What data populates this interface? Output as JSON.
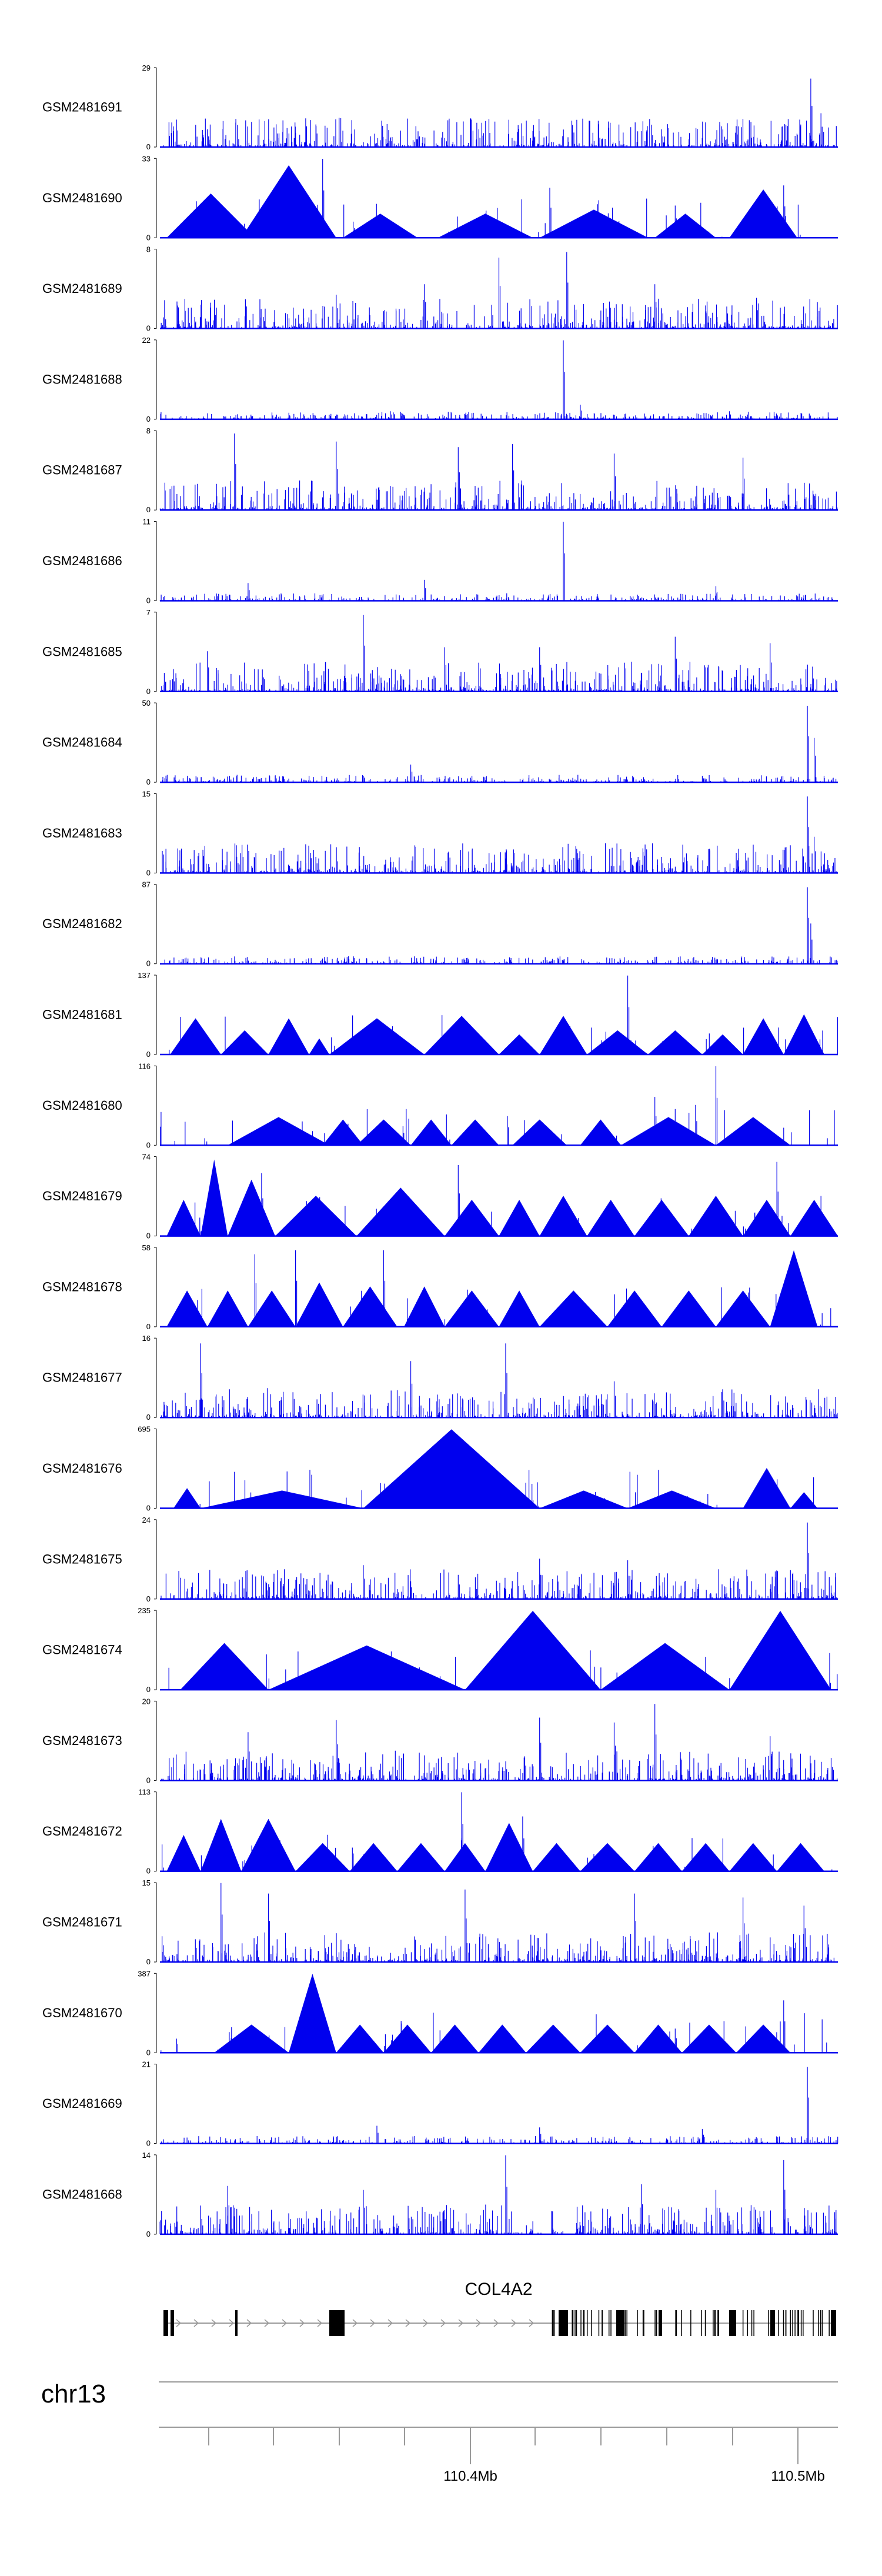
{
  "chart_data": {
    "type": "area",
    "title": "",
    "xlabel": "",
    "ylabel": "",
    "tracks": [
      {
        "name": "GSM2481691",
        "ymax": "29",
        "peaks": [
          [
            0.07,
            0.22
          ],
          [
            0.23,
            0.28
          ],
          [
            0.34,
            0.12
          ],
          [
            0.46,
            0.34
          ],
          [
            0.55,
            0.2
          ],
          [
            0.74,
            0.22
          ],
          [
            0.85,
            0.26
          ],
          [
            0.96,
            0.85
          ],
          [
            0.975,
            0.42
          ]
        ]
      },
      {
        "name": "GSM2481690",
        "ymax": "33",
        "peaks": [
          [
            0.24,
            0.98
          ],
          [
            0.285,
            0.2
          ],
          [
            0.48,
            0.3
          ],
          [
            0.575,
            0.62
          ],
          [
            0.76,
            0.4
          ],
          [
            0.92,
            0.65
          ]
        ],
        "tri": [
          [
            0.01,
            0.14,
            0.55
          ],
          [
            0.12,
            0.26,
            0.9
          ],
          [
            0.27,
            0.38,
            0.3
          ],
          [
            0.41,
            0.55,
            0.3
          ],
          [
            0.56,
            0.72,
            0.35
          ],
          [
            0.73,
            0.82,
            0.3
          ],
          [
            0.84,
            0.94,
            0.6
          ]
        ]
      },
      {
        "name": "GSM2481689",
        "ymax": "8",
        "peaks": [
          [
            0.26,
            0.42
          ],
          [
            0.39,
            0.55
          ],
          [
            0.5,
            0.88
          ],
          [
            0.6,
            0.95
          ],
          [
            0.73,
            0.55
          ],
          [
            0.88,
            0.38
          ]
        ]
      },
      {
        "name": "GSM2481688",
        "ymax": "22",
        "peaks": [
          [
            0.595,
            0.98
          ],
          [
            0.62,
            0.18
          ],
          [
            0.34,
            0.1
          ],
          [
            0.84,
            0.1
          ]
        ]
      },
      {
        "name": "GSM2481687",
        "ymax": "8",
        "peaks": [
          [
            0.11,
            0.95
          ],
          [
            0.26,
            0.85
          ],
          [
            0.44,
            0.78
          ],
          [
            0.52,
            0.82
          ],
          [
            0.67,
            0.7
          ],
          [
            0.86,
            0.65
          ]
        ]
      },
      {
        "name": "GSM2481686",
        "ymax": "11",
        "peaks": [
          [
            0.595,
            0.98
          ],
          [
            0.13,
            0.22
          ],
          [
            0.39,
            0.26
          ],
          [
            0.82,
            0.18
          ]
        ]
      },
      {
        "name": "GSM2481685",
        "ymax": "7",
        "peaks": [
          [
            0.07,
            0.5
          ],
          [
            0.3,
            0.95
          ],
          [
            0.42,
            0.55
          ],
          [
            0.56,
            0.55
          ],
          [
            0.76,
            0.68
          ],
          [
            0.9,
            0.6
          ]
        ]
      },
      {
        "name": "GSM2481684",
        "ymax": "50",
        "peaks": [
          [
            0.955,
            0.95
          ],
          [
            0.965,
            0.55
          ],
          [
            0.37,
            0.22
          ],
          [
            0.3,
            0.08
          ],
          [
            0.17,
            0.08
          ],
          [
            0.8,
            0.08
          ]
        ]
      },
      {
        "name": "GSM2481683",
        "ymax": "15",
        "peaks": [
          [
            0.955,
            0.95
          ],
          [
            0.965,
            0.45
          ],
          [
            0.23,
            0.2
          ],
          [
            0.51,
            0.18
          ],
          [
            0.74,
            0.2
          ]
        ]
      },
      {
        "name": "GSM2481682",
        "ymax": "87",
        "peaks": [
          [
            0.955,
            0.95
          ],
          [
            0.96,
            0.5
          ],
          [
            0.17,
            0.05
          ],
          [
            0.33,
            0.03
          ]
        ]
      },
      {
        "name": "GSM2481681",
        "ymax": "137",
        "tri": [
          [
            0.015,
            0.09,
            0.45
          ],
          [
            0.09,
            0.16,
            0.3
          ],
          [
            0.16,
            0.22,
            0.45
          ],
          [
            0.22,
            0.25,
            0.2
          ],
          [
            0.25,
            0.39,
            0.45
          ],
          [
            0.39,
            0.5,
            0.48
          ],
          [
            0.5,
            0.56,
            0.25
          ],
          [
            0.56,
            0.63,
            0.48
          ],
          [
            0.63,
            0.72,
            0.3
          ],
          [
            0.72,
            0.8,
            0.3
          ],
          [
            0.8,
            0.86,
            0.25
          ],
          [
            0.86,
            0.92,
            0.45
          ],
          [
            0.92,
            0.98,
            0.5
          ]
        ],
        "peaks": [
          [
            0.69,
            0.98
          ]
        ]
      },
      {
        "name": "GSM2481680",
        "ymax": "116",
        "tri": [
          [
            0.1,
            0.25,
            0.35
          ],
          [
            0.24,
            0.3,
            0.32
          ],
          [
            0.29,
            0.37,
            0.32
          ],
          [
            0.37,
            0.43,
            0.32
          ],
          [
            0.43,
            0.5,
            0.32
          ],
          [
            0.52,
            0.6,
            0.32
          ],
          [
            0.62,
            0.68,
            0.32
          ],
          [
            0.68,
            0.82,
            0.35
          ],
          [
            0.82,
            0.93,
            0.35
          ]
        ],
        "peaks": [
          [
            0.82,
            0.98
          ],
          [
            0.73,
            0.6
          ],
          [
            0.76,
            0.45
          ],
          [
            0.79,
            0.5
          ]
        ]
      },
      {
        "name": "GSM2481679",
        "ymax": "74",
        "tri": [
          [
            0.01,
            0.06,
            0.45
          ],
          [
            0.06,
            0.1,
            0.95
          ],
          [
            0.1,
            0.17,
            0.7
          ],
          [
            0.17,
            0.29,
            0.5
          ],
          [
            0.29,
            0.42,
            0.6
          ],
          [
            0.42,
            0.5,
            0.45
          ],
          [
            0.5,
            0.56,
            0.45
          ],
          [
            0.56,
            0.63,
            0.5
          ],
          [
            0.63,
            0.7,
            0.45
          ],
          [
            0.7,
            0.78,
            0.45
          ],
          [
            0.78,
            0.86,
            0.5
          ],
          [
            0.86,
            0.93,
            0.45
          ],
          [
            0.93,
            1.0,
            0.45
          ]
        ],
        "peaks": [
          [
            0.44,
            0.88
          ],
          [
            0.91,
            0.92
          ],
          [
            0.15,
            0.78
          ]
        ]
      },
      {
        "name": "GSM2481678",
        "ymax": "58",
        "tri": [
          [
            0.01,
            0.07,
            0.45
          ],
          [
            0.07,
            0.13,
            0.45
          ],
          [
            0.13,
            0.2,
            0.45
          ],
          [
            0.2,
            0.27,
            0.55
          ],
          [
            0.27,
            0.35,
            0.5
          ],
          [
            0.36,
            0.42,
            0.5
          ],
          [
            0.42,
            0.5,
            0.45
          ],
          [
            0.5,
            0.56,
            0.45
          ],
          [
            0.56,
            0.66,
            0.45
          ],
          [
            0.66,
            0.74,
            0.45
          ],
          [
            0.74,
            0.82,
            0.45
          ],
          [
            0.82,
            0.9,
            0.45
          ],
          [
            0.9,
            0.97,
            0.95
          ]
        ],
        "peaks": [
          [
            0.14,
            0.9
          ],
          [
            0.2,
            0.95
          ],
          [
            0.33,
            0.95
          ]
        ]
      },
      {
        "name": "GSM2481677",
        "ymax": "16",
        "peaks": [
          [
            0.06,
            0.92
          ],
          [
            0.37,
            0.7
          ],
          [
            0.51,
            0.92
          ],
          [
            0.83,
            0.35
          ],
          [
            0.67,
            0.45
          ]
        ]
      },
      {
        "name": "GSM2481676",
        "ymax": "695",
        "tri": [
          [
            0.02,
            0.06,
            0.25
          ],
          [
            0.06,
            0.3,
            0.22
          ],
          [
            0.3,
            0.56,
            0.98
          ],
          [
            0.56,
            0.69,
            0.22
          ],
          [
            0.69,
            0.82,
            0.22
          ],
          [
            0.86,
            0.93,
            0.5
          ],
          [
            0.93,
            0.97,
            0.2
          ]
        ]
      },
      {
        "name": "GSM2481675",
        "ymax": "24",
        "peaks": [
          [
            0.955,
            0.95
          ],
          [
            0.3,
            0.42
          ],
          [
            0.56,
            0.5
          ],
          [
            0.69,
            0.48
          ],
          [
            0.44,
            0.3
          ]
        ]
      },
      {
        "name": "GSM2481674",
        "ymax": "235",
        "tri": [
          [
            0.03,
            0.16,
            0.58
          ],
          [
            0.16,
            0.45,
            0.55
          ],
          [
            0.45,
            0.65,
            0.98
          ],
          [
            0.65,
            0.84,
            0.58
          ],
          [
            0.84,
            0.99,
            0.98
          ]
        ]
      },
      {
        "name": "GSM2481673",
        "ymax": "20",
        "peaks": [
          [
            0.13,
            0.6
          ],
          [
            0.26,
            0.75
          ],
          [
            0.56,
            0.78
          ],
          [
            0.67,
            0.72
          ],
          [
            0.73,
            0.95
          ],
          [
            0.9,
            0.55
          ],
          [
            0.99,
            0.28
          ]
        ]
      },
      {
        "name": "GSM2481672",
        "ymax": "113",
        "tri": [
          [
            0.01,
            0.06,
            0.45
          ],
          [
            0.06,
            0.12,
            0.65
          ],
          [
            0.12,
            0.2,
            0.65
          ],
          [
            0.2,
            0.28,
            0.35
          ],
          [
            0.28,
            0.35,
            0.35
          ],
          [
            0.35,
            0.42,
            0.35
          ],
          [
            0.42,
            0.48,
            0.35
          ],
          [
            0.48,
            0.55,
            0.6
          ],
          [
            0.55,
            0.62,
            0.35
          ],
          [
            0.62,
            0.7,
            0.35
          ],
          [
            0.7,
            0.77,
            0.35
          ],
          [
            0.77,
            0.84,
            0.35
          ],
          [
            0.84,
            0.91,
            0.35
          ],
          [
            0.91,
            0.98,
            0.35
          ]
        ],
        "peaks": [
          [
            0.445,
            0.98
          ],
          [
            0.535,
            0.68
          ]
        ]
      },
      {
        "name": "GSM2481671",
        "ymax": "15",
        "peaks": [
          [
            0.09,
            0.98
          ],
          [
            0.16,
            0.85
          ],
          [
            0.45,
            0.9
          ],
          [
            0.7,
            0.85
          ],
          [
            0.86,
            0.8
          ],
          [
            0.95,
            0.7
          ]
        ]
      },
      {
        "name": "GSM2481670",
        "ymax": "387",
        "tri": [
          [
            0.08,
            0.19,
            0.35
          ],
          [
            0.19,
            0.26,
            0.98
          ],
          [
            0.26,
            0.33,
            0.35
          ],
          [
            0.33,
            0.4,
            0.35
          ],
          [
            0.4,
            0.47,
            0.35
          ],
          [
            0.47,
            0.54,
            0.35
          ],
          [
            0.54,
            0.62,
            0.35
          ],
          [
            0.62,
            0.7,
            0.35
          ],
          [
            0.7,
            0.77,
            0.35
          ],
          [
            0.77,
            0.85,
            0.35
          ],
          [
            0.85,
            0.93,
            0.35
          ]
        ],
        "peaks": [
          [
            0.92,
            0.65
          ],
          [
            0.76,
            0.3
          ]
        ]
      },
      {
        "name": "GSM2481669",
        "ymax": "21",
        "peaks": [
          [
            0.955,
            0.95
          ],
          [
            0.32,
            0.22
          ],
          [
            0.56,
            0.2
          ],
          [
            0.8,
            0.18
          ]
        ]
      },
      {
        "name": "GSM2481668",
        "ymax": "14",
        "peaks": [
          [
            0.51,
            0.98
          ],
          [
            0.92,
            0.92
          ],
          [
            0.3,
            0.55
          ],
          [
            0.71,
            0.62
          ],
          [
            0.1,
            0.6
          ],
          [
            0.82,
            0.55
          ]
        ]
      }
    ],
    "x_ticks": [
      "110.4Mb",
      "110.5Mb"
    ],
    "gene": "COL4A2",
    "chromosome": "chr13"
  }
}
